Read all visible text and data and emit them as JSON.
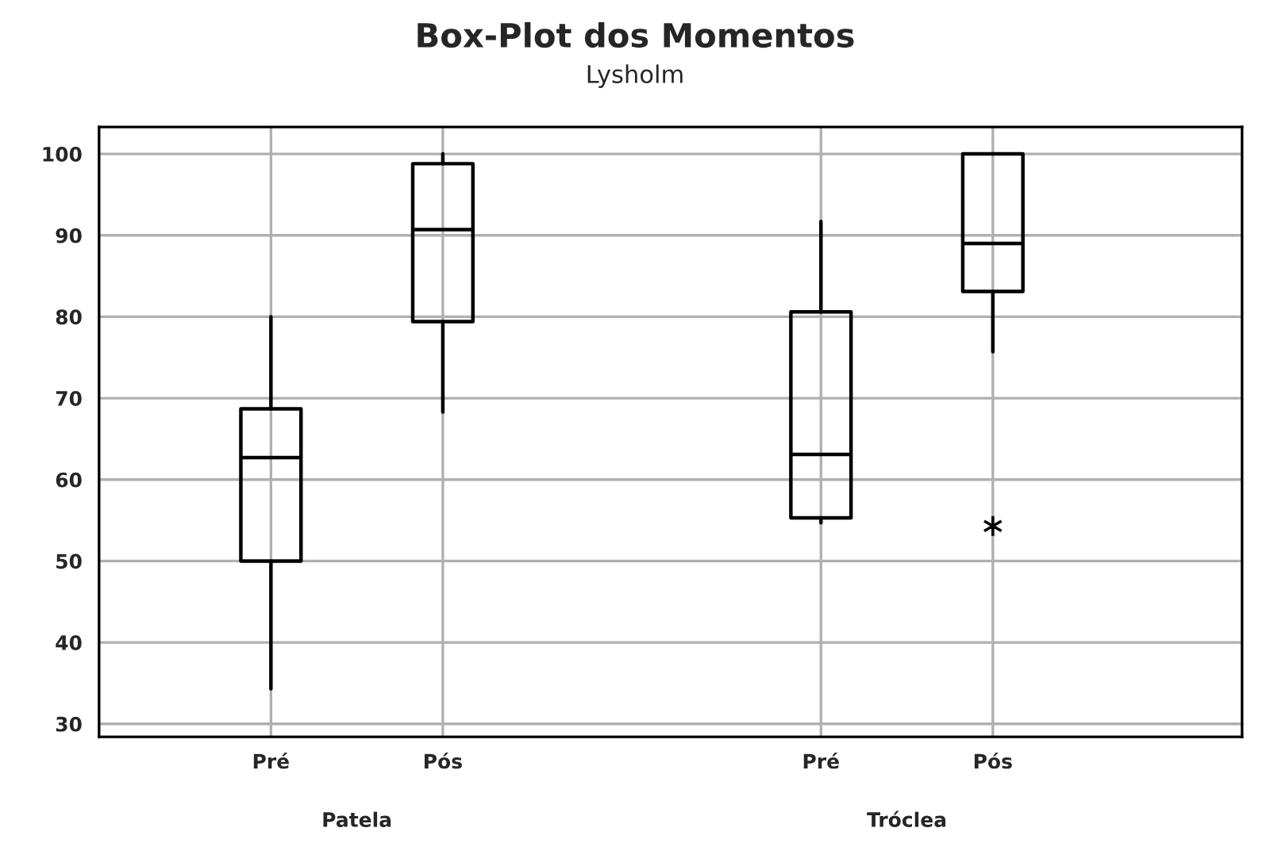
{
  "chart_data": {
    "type": "box",
    "title": "Box-Plot dos Momentos",
    "subtitle": "Lysholm",
    "categories": [
      "Pré",
      "Pós",
      "Pré",
      "Pós"
    ],
    "boxes": [
      {
        "low": 34.3,
        "q1": 50,
        "median": 62.7,
        "q3": 68.7,
        "high": 80
      },
      {
        "low": 68.3,
        "q1": 79.4,
        "median": 90.7,
        "q3": 98.8,
        "high": 100
      },
      {
        "low": 54.7,
        "q1": 55.3,
        "median": 63.1,
        "q3": 80.6,
        "high": 91.7
      },
      {
        "low": 75.7,
        "q1": 83.1,
        "median": 89,
        "q3": 100,
        "high": 100,
        "outliers": [
          54.3
        ]
      }
    ],
    "annotations": [
      "Patela",
      "Tróclea"
    ],
    "ylim": [
      28.4,
      103.3
    ],
    "yticks": [
      30,
      40,
      50,
      60,
      70,
      80,
      90,
      100
    ],
    "grid": true
  }
}
